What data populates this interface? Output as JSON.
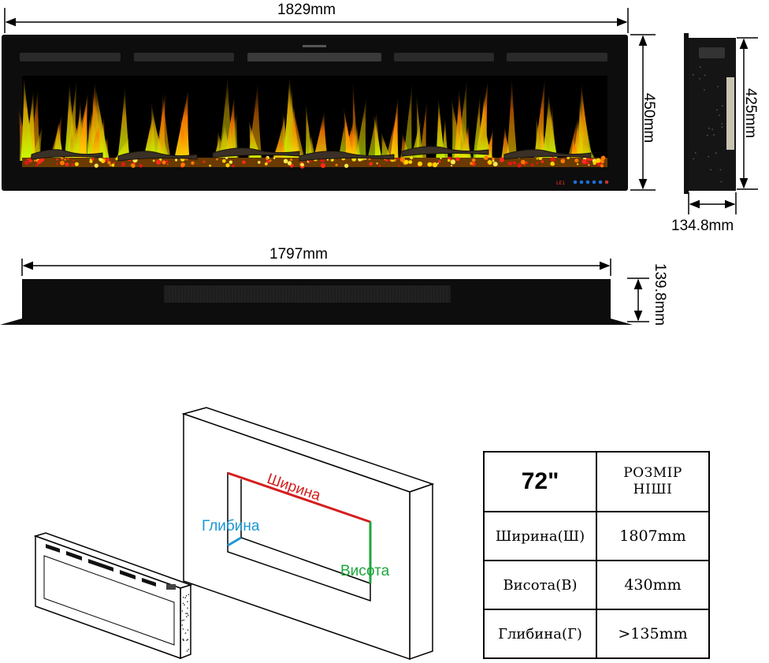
{
  "dimensions": {
    "overall_width": "1829mm",
    "height": "450mm",
    "side_height": "425mm",
    "side_depth": "134.8mm",
    "insert_width": "1797mm",
    "top_depth": "139.8mm"
  },
  "control_panel": {
    "display": "LE1"
  },
  "niche_labels": {
    "width": "Ширина",
    "depth": "Глибина",
    "height": "Висота"
  },
  "colors": {
    "width_line": "#d41e1e",
    "depth_line": "#1e96d4",
    "height_line": "#1ea63c",
    "frame": "#0d0d0d"
  },
  "table": {
    "size": "72\"",
    "header_line1": "РОЗМІР",
    "header_line2": "НІШІ",
    "rows": [
      {
        "label": "Ширина(Ш)",
        "value": "1807mm"
      },
      {
        "label": "Висота(В)",
        "value": "430mm"
      },
      {
        "label": "Глибина(Г)",
        "value": ">135mm"
      }
    ]
  }
}
